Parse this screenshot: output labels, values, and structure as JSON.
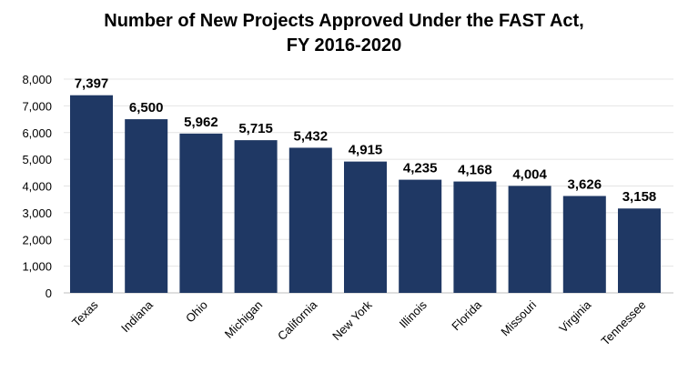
{
  "chart_data": {
    "type": "bar",
    "title": "Number of New Projects Approved Under the FAST Act, FY 2016-2020",
    "title_lines": [
      "Number of New Projects Approved Under the FAST Act,",
      "FY 2016-2020"
    ],
    "categories": [
      "Texas",
      "Indiana",
      "Ohio",
      "Michigan",
      "California",
      "New York",
      "Illinois",
      "Florida",
      "Missouri",
      "Virginia",
      "Tennessee"
    ],
    "values": [
      7397,
      6500,
      5962,
      5715,
      5432,
      4915,
      4235,
      4168,
      4004,
      3626,
      3158
    ],
    "data_labels": [
      "7,397",
      "6,500",
      "5,962",
      "5,715",
      "5,432",
      "4,915",
      "4,235",
      "4,168",
      "4,004",
      "3,626",
      "3,158"
    ],
    "xlabel": "",
    "ylabel": "",
    "ylim": [
      0,
      8000
    ],
    "yticks": [
      0,
      1000,
      2000,
      3000,
      4000,
      5000,
      6000,
      7000,
      8000
    ],
    "ytick_labels": [
      "0",
      "1,000",
      "2,000",
      "3,000",
      "4,000",
      "5,000",
      "6,000",
      "7,000",
      "8,000"
    ],
    "grid": true,
    "legend": "none",
    "bar_color": "#1f3864"
  }
}
